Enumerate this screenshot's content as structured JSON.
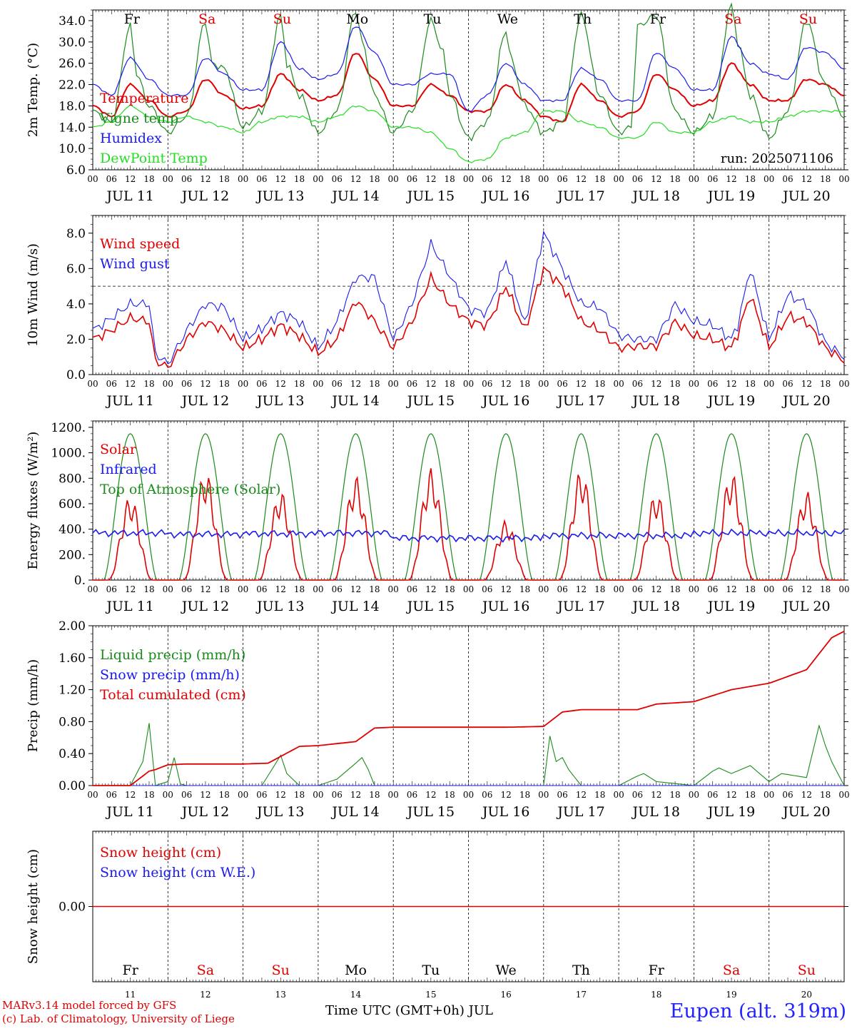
{
  "run_label": "run: 2025071106",
  "colors": {
    "red": "#e00000",
    "green": "#1a8a1a",
    "blue": "#1a1aee",
    "lightgreen": "#22dd22",
    "weekend": "#e00000",
    "weekday": "#000000"
  },
  "time_axis": {
    "hour_ticks": [
      "00",
      "06",
      "12",
      "18"
    ],
    "end_tick": "00",
    "date_labels": [
      "JUL 11",
      "JUL 12",
      "JUL 13",
      "JUL 14",
      "JUL 15",
      "JUL 16",
      "JUL 17",
      "JUL 18",
      "JUL 19",
      "JUL 20"
    ],
    "day_names": [
      "Fr",
      "Sa",
      "Su",
      "Mo",
      "Tu",
      "We",
      "Th",
      "Fr",
      "Sa",
      "Su"
    ],
    "weekend": [
      false,
      true,
      true,
      false,
      false,
      false,
      false,
      false,
      true,
      true
    ],
    "day_numbers": [
      "11",
      "12",
      "13",
      "14",
      "15",
      "16",
      "17",
      "18",
      "19",
      "20"
    ],
    "title": "Time UTC (GMT+0h) JUL"
  },
  "footer": {
    "model": "MARv3.14 model forced by GFS",
    "lab": "(c) Lab. of Climatology, University of Liege",
    "station": "Eupen (alt. 319m)"
  },
  "chart_data": [
    {
      "type": "line",
      "id": "temperature",
      "ylabel": "2m Temp. (°C)",
      "ylim": [
        6,
        36
      ],
      "yticks": [
        "6.0",
        "10.0",
        "14.0",
        "18.0",
        "22.0",
        "26.0",
        "30.0",
        "34.0"
      ],
      "x_unit": "hours since JUL 11 00 UTC",
      "series": [
        {
          "name": "Temperature",
          "color": "red",
          "x": [
            0,
            6,
            12,
            18,
            24,
            30,
            36,
            42,
            48,
            54,
            60,
            66,
            72,
            78,
            84,
            90,
            96,
            102,
            108,
            114,
            120,
            126,
            132,
            138,
            144,
            150,
            156,
            162,
            168,
            174,
            180,
            186,
            192,
            198,
            204,
            210,
            216,
            222,
            228,
            234,
            240
          ],
          "y": [
            18,
            16,
            22,
            19,
            16,
            17,
            23,
            20,
            17.5,
            18,
            24,
            21,
            19,
            20,
            28,
            23,
            18,
            18,
            22,
            20,
            17,
            17,
            22,
            19,
            16,
            15,
            22,
            19,
            16,
            17,
            24,
            21,
            18,
            19,
            26,
            22,
            19,
            19,
            23,
            22,
            20
          ]
        },
        {
          "name": "Vigne temp",
          "color": "green",
          "x": [
            0,
            6,
            12,
            14,
            18,
            24,
            30,
            36,
            38,
            42,
            48,
            54,
            60,
            62,
            66,
            72,
            78,
            84,
            86,
            90,
            96,
            102,
            108,
            112,
            114,
            120,
            126,
            132,
            134,
            138,
            144,
            150,
            156,
            162,
            168,
            172,
            174,
            180,
            186,
            192,
            198,
            204,
            206,
            210,
            216,
            222,
            228,
            234,
            240
          ],
          "y": [
            17,
            15,
            33,
            24,
            18,
            13,
            16,
            34,
            26,
            25,
            14,
            17,
            35,
            26,
            20,
            13,
            17,
            36,
            30,
            20,
            13,
            17,
            34,
            28,
            20,
            12,
            15,
            32,
            26,
            18,
            13,
            15,
            35,
            20,
            13,
            14,
            33,
            35,
            17,
            13,
            16,
            37,
            30,
            20,
            12,
            17,
            34,
            22,
            16
          ]
        },
        {
          "name": "Humidex",
          "color": "blue",
          "x": [
            0,
            6,
            12,
            18,
            24,
            30,
            36,
            42,
            48,
            54,
            60,
            66,
            72,
            78,
            84,
            90,
            96,
            102,
            108,
            114,
            120,
            126,
            132,
            138,
            144,
            150,
            156,
            162,
            168,
            174,
            180,
            186,
            192,
            198,
            204,
            210,
            216,
            222,
            228,
            234,
            240
          ],
          "y": [
            22,
            20,
            27,
            23,
            20,
            20,
            27,
            24,
            21,
            21,
            30,
            25,
            23,
            24,
            33,
            28,
            22,
            22,
            24,
            24,
            17,
            20,
            26,
            22,
            19,
            19,
            25,
            23,
            19,
            19,
            28,
            25,
            21,
            21,
            31,
            26,
            24,
            23,
            29,
            28,
            25
          ]
        },
        {
          "name": "DewPoint Temp",
          "color": "lightgreen",
          "x": [
            0,
            6,
            12,
            18,
            24,
            30,
            36,
            42,
            48,
            54,
            60,
            66,
            72,
            78,
            84,
            90,
            96,
            102,
            108,
            114,
            120,
            126,
            132,
            138,
            144,
            150,
            156,
            162,
            168,
            174,
            180,
            186,
            192,
            198,
            204,
            210,
            216,
            222,
            228,
            234,
            240
          ],
          "y": [
            14,
            15,
            18,
            16,
            15,
            16,
            15,
            14,
            13,
            15,
            16,
            16,
            15,
            16,
            18,
            17,
            14,
            14,
            13,
            10,
            7.5,
            8,
            12,
            13,
            17,
            17,
            15,
            14,
            12,
            12,
            15,
            13,
            13,
            15,
            16,
            15,
            15,
            16,
            17,
            17,
            17
          ]
        }
      ]
    },
    {
      "type": "line",
      "id": "wind",
      "ylabel": "10m Wind (m/s)",
      "ylim": [
        0,
        9
      ],
      "yticks": [
        "0.0",
        "2.0",
        "4.0",
        "6.0",
        "8.0"
      ],
      "reference_line": 5,
      "series": [
        {
          "name": "Wind speed",
          "color": "red",
          "x": [
            0,
            6,
            12,
            18,
            20,
            24,
            30,
            36,
            42,
            48,
            54,
            60,
            66,
            72,
            78,
            84,
            90,
            96,
            102,
            108,
            114,
            120,
            126,
            132,
            138,
            144,
            150,
            156,
            162,
            168,
            174,
            180,
            186,
            192,
            198,
            204,
            206,
            210,
            216,
            222,
            228,
            234,
            240
          ],
          "y": [
            2,
            2.5,
            3.2,
            3,
            0.8,
            0.4,
            2,
            3,
            2.5,
            1.5,
            2,
            2.8,
            2.2,
            1.2,
            2,
            4.2,
            3,
            1.5,
            3,
            5.5,
            4,
            3,
            2.8,
            5,
            2.5,
            6,
            5,
            3,
            2.5,
            1.5,
            1.6,
            1.6,
            3,
            2.2,
            2,
            1.5,
            2.3,
            4.5,
            1.5,
            3.3,
            3,
            1.5,
            0.8
          ]
        },
        {
          "name": "Wind gust",
          "color": "blue",
          "x": [
            0,
            6,
            12,
            18,
            20,
            24,
            30,
            36,
            42,
            48,
            54,
            60,
            66,
            72,
            78,
            84,
            90,
            96,
            102,
            108,
            114,
            120,
            126,
            132,
            138,
            144,
            150,
            156,
            162,
            168,
            174,
            180,
            186,
            192,
            198,
            204,
            206,
            210,
            216,
            222,
            228,
            234,
            240
          ],
          "y": [
            2.5,
            3.2,
            4,
            4,
            1.2,
            0.6,
            2.5,
            4,
            3.8,
            2,
            2.6,
            3.5,
            3,
            1.5,
            3,
            5.5,
            5.5,
            2,
            4,
            7.4,
            5.6,
            3.7,
            3.5,
            6.5,
            2.8,
            8,
            6,
            4,
            3.8,
            2.2,
            2,
            2,
            4,
            3,
            2.8,
            2,
            2.8,
            6,
            2,
            4.5,
            4,
            1.8,
            1
          ]
        }
      ]
    },
    {
      "type": "line",
      "id": "energy",
      "ylabel": "Energy fluxes (W/m²)",
      "ylim": [
        0,
        1250
      ],
      "yticks": [
        "0.",
        "200.",
        "400.",
        "600.",
        "800.",
        "1000.",
        "1200."
      ],
      "series": [
        {
          "name": "Solar",
          "color": "red",
          "daily_peak": [
            660,
            860,
            700,
            820,
            880,
            470,
            870,
            690,
            850,
            700
          ]
        },
        {
          "name": "Infrared",
          "color": "blue",
          "daily_mean": [
            370,
            360,
            365,
            370,
            330,
            330,
            350,
            350,
            370,
            370
          ]
        },
        {
          "name": "Top of Atmosphere (Solar)",
          "color": "green",
          "daily_peak": [
            1150,
            1150,
            1150,
            1150,
            1150,
            1150,
            1150,
            1150,
            1150,
            1150
          ]
        }
      ]
    },
    {
      "type": "line",
      "id": "precip",
      "ylabel": "Precip (mm/h)",
      "ylim": [
        0,
        2
      ],
      "yticks": [
        "0.00",
        "0.40",
        "0.80",
        "1.20",
        "1.60",
        "2.00"
      ],
      "series": [
        {
          "name": "Liquid precip (mm/h)",
          "color": "green",
          "x": [
            0,
            12,
            16,
            18,
            20,
            24,
            26,
            28,
            30,
            36,
            42,
            54,
            58,
            60,
            62,
            66,
            72,
            78,
            84,
            86,
            88,
            90,
            96,
            108,
            144,
            146,
            148,
            150,
            152,
            156,
            168,
            174,
            176,
            180,
            192,
            198,
            200,
            204,
            210,
            216,
            220,
            228,
            232,
            234,
            236,
            240
          ],
          "y": [
            0,
            0,
            0.3,
            0.78,
            0,
            0.05,
            0.35,
            0.02,
            0,
            0,
            0,
            0,
            0.25,
            0.38,
            0.15,
            0,
            0,
            0.08,
            0.28,
            0.35,
            0.2,
            0,
            0,
            0,
            0,
            0.62,
            0.3,
            0.35,
            0.2,
            0,
            0,
            0.12,
            0.15,
            0.05,
            0,
            0.18,
            0.22,
            0.15,
            0.25,
            0.05,
            0.15,
            0.1,
            0.75,
            0.5,
            0.3,
            0
          ]
        },
        {
          "name": "Snow precip (mm/h)",
          "color": "blue",
          "x": [
            0,
            240
          ],
          "y": [
            0,
            0
          ]
        },
        {
          "name": "Total cumulated (cm)",
          "color": "red",
          "x": [
            0,
            12,
            18,
            20,
            24,
            30,
            48,
            56,
            66,
            72,
            84,
            90,
            96,
            108,
            132,
            144,
            150,
            156,
            174,
            180,
            192,
            204,
            216,
            228,
            236,
            240
          ],
          "y": [
            0,
            0,
            0.18,
            0.2,
            0.26,
            0.27,
            0.27,
            0.28,
            0.49,
            0.5,
            0.55,
            0.72,
            0.73,
            0.73,
            0.73,
            0.74,
            0.92,
            0.95,
            0.95,
            1.02,
            1.05,
            1.2,
            1.28,
            1.45,
            1.85,
            1.93
          ]
        }
      ]
    },
    {
      "type": "line",
      "id": "snow",
      "ylabel": "Snow height (cm)",
      "yticks": [
        "0.00"
      ],
      "series": [
        {
          "name": "Snow height (cm)",
          "color": "red",
          "x": [
            0,
            240
          ],
          "y": [
            0,
            0
          ]
        },
        {
          "name": "Snow height (cm W.E.)",
          "color": "blue",
          "x": [
            0,
            240
          ],
          "y": [
            0,
            0
          ]
        }
      ]
    }
  ]
}
